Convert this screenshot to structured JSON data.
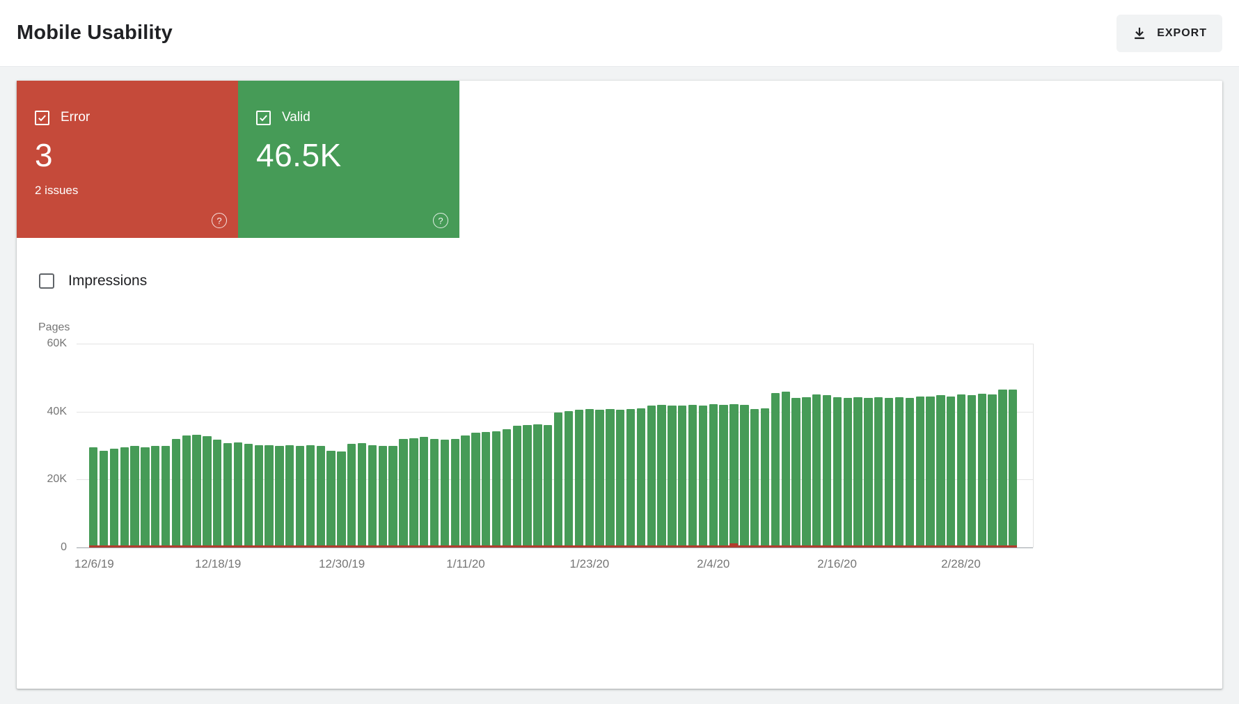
{
  "header": {
    "title": "Mobile Usability",
    "export": {
      "label": "EXPORT"
    }
  },
  "cards": {
    "error": {
      "label": "Error",
      "value": "3",
      "subtitle": "2 issues",
      "checked": true,
      "color": "#c54a3a"
    },
    "valid": {
      "label": "Valid",
      "value": "46.5K",
      "checked": true,
      "color": "#469b57"
    }
  },
  "filters": {
    "impressions": {
      "label": "Impressions",
      "checked": false
    }
  },
  "chart_data": {
    "type": "bar",
    "title": "",
    "xlabel": "",
    "ylabel": "Pages",
    "ylim": [
      0,
      60000
    ],
    "grid": true,
    "legend": "none",
    "y_ticks": [
      {
        "label": "60K",
        "value": 60000
      },
      {
        "label": "40K",
        "value": 40000
      },
      {
        "label": "20K",
        "value": 20000
      },
      {
        "label": "0",
        "value": 0
      }
    ],
    "x_ticks": [
      {
        "label": "12/6/19",
        "index": 0
      },
      {
        "label": "12/18/19",
        "index": 12
      },
      {
        "label": "12/30/19",
        "index": 24
      },
      {
        "label": "1/11/20",
        "index": 36
      },
      {
        "label": "1/23/20",
        "index": 48
      },
      {
        "label": "2/4/20",
        "index": 60
      },
      {
        "label": "2/16/20",
        "index": 72
      },
      {
        "label": "2/28/20",
        "index": 84
      }
    ],
    "series": [
      {
        "name": "Valid",
        "color": "#469b57",
        "values": [
          29500,
          28500,
          29000,
          29500,
          29800,
          29500,
          29800,
          30000,
          32000,
          33000,
          33200,
          32800,
          31800,
          30800,
          31000,
          30500,
          30200,
          30200,
          30000,
          30200,
          30000,
          30200,
          30000,
          28500,
          28200,
          30500,
          30800,
          30200,
          29800,
          30000,
          32000,
          32200,
          32500,
          32000,
          31800,
          32000,
          33000,
          33800,
          34000,
          34200,
          34800,
          35800,
          36000,
          36200,
          36000,
          39800,
          40200,
          40500,
          40800,
          40500,
          40800,
          40500,
          40800,
          41000,
          41800,
          42000,
          41800,
          41800,
          42000,
          41800,
          42200,
          42000,
          42200,
          42000,
          40800,
          41000,
          45500,
          45800,
          44000,
          44200,
          45000,
          44800,
          44200,
          44000,
          44200,
          44000,
          44200,
          44000,
          44200,
          44000,
          44500,
          44500,
          44800,
          44500,
          45000,
          44800,
          45200,
          45000,
          46500,
          46500
        ]
      },
      {
        "name": "Error",
        "color": "#b23c2e",
        "approx_value": 3,
        "spike_index": 62
      }
    ]
  }
}
